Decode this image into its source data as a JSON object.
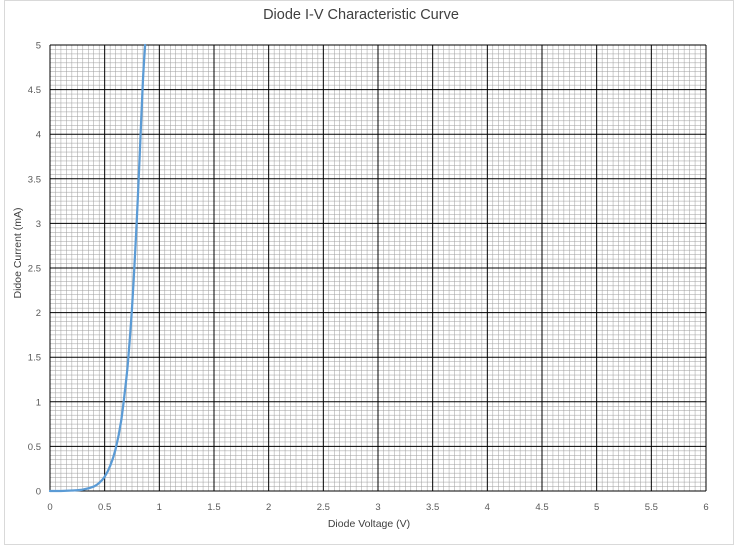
{
  "chart_data": {
    "type": "line",
    "title": "Diode I-V Characteristic Curve",
    "xlabel": "Diode Voltage (V)",
    "ylabel": "Didoe Current (mA)",
    "xlim": [
      0,
      6
    ],
    "ylim": [
      0,
      5
    ],
    "xticks": [
      0,
      0.5,
      1,
      1.5,
      2,
      2.5,
      3,
      3.5,
      4,
      4.5,
      5,
      5.5,
      6
    ],
    "xtick_labels": [
      "0",
      "0.5",
      "1",
      "1.5",
      "2",
      "2.5",
      "3",
      "3.5",
      "4",
      "4.5",
      "5",
      "5.5",
      "6"
    ],
    "yticks": [
      0,
      0.5,
      1,
      1.5,
      2,
      2.5,
      3,
      3.5,
      4,
      4.5,
      5
    ],
    "ytick_labels": [
      "0",
      "0.5",
      "1",
      "1.5",
      "2",
      "2.5",
      "3",
      "3.5",
      "4",
      "4.5",
      "5"
    ],
    "grid": "major and minor",
    "legend": "none",
    "series": [
      {
        "color": "#5b9bd5",
        "x": [
          0.0,
          0.1,
          0.2,
          0.3,
          0.4,
          0.45,
          0.5,
          0.55,
          0.6,
          0.65,
          0.7,
          0.72,
          0.75,
          0.78,
          0.8,
          0.82,
          0.85,
          0.87
        ],
        "y": [
          0.0,
          0.0,
          0.005,
          0.015,
          0.05,
          0.09,
          0.16,
          0.28,
          0.47,
          0.78,
          1.28,
          1.55,
          2.05,
          2.7,
          3.2,
          3.75,
          4.6,
          5.0
        ]
      }
    ]
  },
  "colors": {
    "major_grid": "#000000",
    "minor_grid": "#9e9e9e",
    "series": "#5b9bd5"
  }
}
